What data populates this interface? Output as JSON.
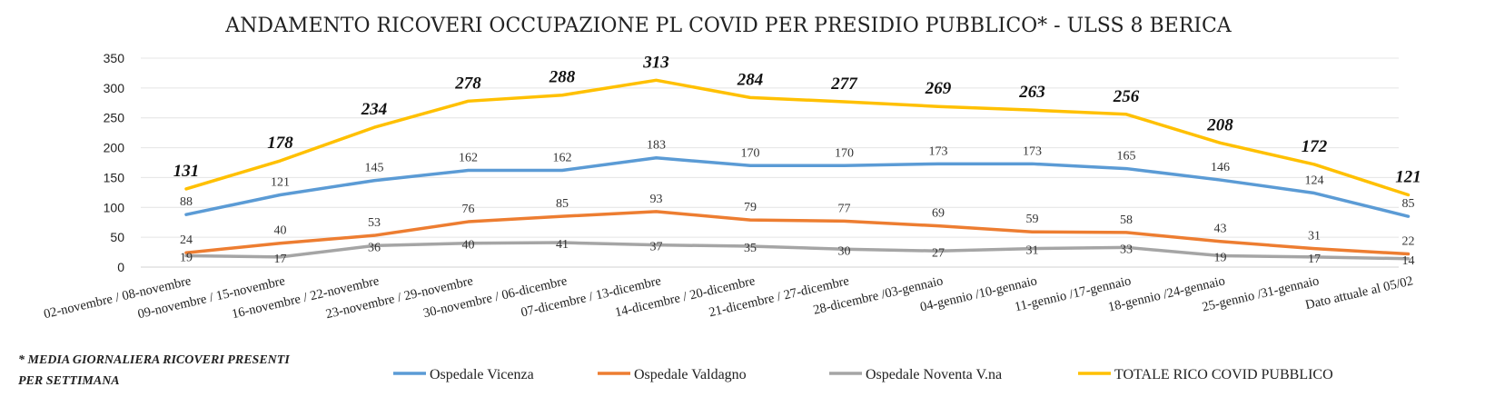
{
  "chart_data": {
    "type": "line",
    "title": "ANDAMENTO RICOVERI OCCUPAZIONE PL COVID PER PRESIDIO PUBBLICO* - ULSS 8 BERICA",
    "xlabel": "",
    "ylabel": "",
    "ylim": [
      0,
      350
    ],
    "yticks": [
      0,
      50,
      100,
      150,
      200,
      250,
      300,
      350
    ],
    "grid": true,
    "legend_position": "bottom",
    "categories": [
      "02-novembre / 08-novembre",
      "09-novembre / 15-novembre",
      "16-novembre / 22-novembre",
      "23-novembre / 29-novembre",
      "30-novembre / 06-dicembre",
      "07-dicembre / 13-dicembre",
      "14-dicembre / 20-dicembre",
      "21-dicembre / 27-dicembre",
      "28-dicembre /03-gennaio",
      "04-gennio /10-gennaio",
      "11-gennio /17-gennaio",
      "18-gennio /24-gennaio",
      "25-gennio /31-gennaio",
      "Dato attuale al 05/02"
    ],
    "series": [
      {
        "name": "Ospedale Vicenza",
        "color": "#5B9BD5",
        "values": [
          88,
          121,
          145,
          162,
          162,
          183,
          170,
          170,
          173,
          173,
          165,
          146,
          124,
          85
        ]
      },
      {
        "name": "Ospedale Valdagno",
        "color": "#ED7D31",
        "values": [
          24,
          40,
          53,
          76,
          85,
          93,
          79,
          77,
          69,
          59,
          58,
          43,
          31,
          22
        ]
      },
      {
        "name": "Ospedale Noventa V.na",
        "color": "#A5A5A5",
        "values": [
          19,
          17,
          36,
          40,
          41,
          37,
          35,
          30,
          27,
          31,
          33,
          19,
          17,
          14
        ]
      },
      {
        "name": "TOTALE RICO COVID PUBBLICO",
        "color": "#FFC000",
        "values": [
          131,
          178,
          234,
          278,
          288,
          313,
          284,
          277,
          269,
          263,
          256,
          208,
          172,
          121
        ]
      }
    ],
    "footnote": [
      "* MEDIA GIORNALIERA RICOVERI PRESENTI",
      "PER SETTIMANA"
    ]
  }
}
